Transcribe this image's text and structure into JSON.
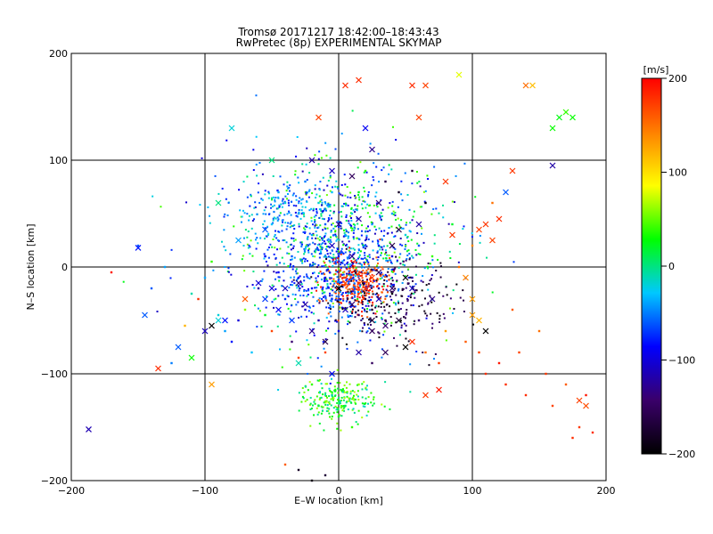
{
  "chart_data": {
    "type": "scatter",
    "title": "Tromsø 20171217 18:42:00–18:43:43",
    "subtitle": "RwPretec (8p) EXPERIMENTAL SKYMAP",
    "xlabel": "E–W location [km]",
    "ylabel": "N–S location [km]",
    "xlim": [
      -200,
      200
    ],
    "ylim": [
      -200,
      200
    ],
    "xticks": [
      -200,
      -100,
      0,
      100,
      200
    ],
    "yticks": [
      -200,
      -100,
      0,
      100,
      200
    ],
    "xtick_labels": [
      "−200",
      "−100",
      "0",
      "100",
      "200"
    ],
    "ytick_labels": [
      "−200",
      "−100",
      "0",
      "100",
      "200"
    ],
    "grid": true,
    "colorbar": {
      "label": "[m/s]",
      "range": [
        -200,
        200
      ],
      "ticks": [
        -200,
        -100,
        0,
        100,
        200
      ],
      "tick_labels": [
        "−200",
        "−100",
        "0",
        "100",
        "200"
      ],
      "colors": [
        "#000000",
        "#3a006a",
        "#0000ff",
        "#00c8ff",
        "#00ff00",
        "#ffff00",
        "#ff8000",
        "#ff0000"
      ]
    },
    "series": [
      {
        "marker": "x",
        "points": [
          [
            -150,
            18,
            -80
          ],
          [
            -145,
            -45,
            -60
          ],
          [
            -135,
            -95,
            180
          ],
          [
            -120,
            -75,
            -60
          ],
          [
            -110,
            -85,
            30
          ],
          [
            -95,
            -110,
            130
          ],
          [
            -100,
            -60,
            -110
          ],
          [
            -95,
            -55,
            -200
          ],
          [
            -90,
            -50,
            -20
          ],
          [
            -90,
            60,
            0
          ],
          [
            -85,
            -50,
            -80
          ],
          [
            -80,
            130,
            -20
          ],
          [
            -75,
            25,
            -40
          ],
          [
            -70,
            -30,
            160
          ],
          [
            -60,
            -15,
            -100
          ],
          [
            -55,
            -30,
            -70
          ],
          [
            -55,
            35,
            -60
          ],
          [
            -50,
            -20,
            -100
          ],
          [
            -50,
            100,
            0
          ],
          [
            -45,
            -40,
            -90
          ],
          [
            -40,
            -20,
            -110
          ],
          [
            -35,
            -50,
            -70
          ],
          [
            -30,
            -15,
            -130
          ],
          [
            -30,
            -90,
            -10
          ],
          [
            -25,
            -35,
            -120
          ],
          [
            -20,
            -60,
            -130
          ],
          [
            -20,
            100,
            -120
          ],
          [
            -15,
            140,
            170
          ],
          [
            -10,
            -70,
            -160
          ],
          [
            -5,
            -100,
            -90
          ],
          [
            -5,
            20,
            -110
          ],
          [
            -5,
            90,
            -110
          ],
          [
            0,
            -20,
            -200
          ],
          [
            0,
            40,
            -120
          ],
          [
            5,
            -15,
            170
          ],
          [
            5,
            -40,
            -110
          ],
          [
            5,
            170,
            180
          ],
          [
            10,
            10,
            -130
          ],
          [
            10,
            -35,
            -140
          ],
          [
            10,
            85,
            -150
          ],
          [
            15,
            -80,
            -120
          ],
          [
            15,
            45,
            -120
          ],
          [
            15,
            175,
            180
          ],
          [
            20,
            -20,
            180
          ],
          [
            20,
            130,
            -90
          ],
          [
            25,
            -10,
            170
          ],
          [
            25,
            -50,
            -170
          ],
          [
            25,
            -60,
            -150
          ],
          [
            25,
            110,
            -130
          ],
          [
            30,
            60,
            -140
          ],
          [
            30,
            -5,
            -150
          ],
          [
            30,
            -30,
            -110
          ],
          [
            35,
            -55,
            -140
          ],
          [
            35,
            -80,
            -150
          ],
          [
            40,
            -20,
            -140
          ],
          [
            40,
            20,
            -160
          ],
          [
            45,
            35,
            -160
          ],
          [
            45,
            -50,
            -170
          ],
          [
            50,
            -10,
            -190
          ],
          [
            50,
            -75,
            -200
          ],
          [
            55,
            -20,
            -110
          ],
          [
            55,
            -70,
            180
          ],
          [
            55,
            170,
            180
          ],
          [
            60,
            140,
            170
          ],
          [
            60,
            40,
            -120
          ],
          [
            65,
            170,
            170
          ],
          [
            65,
            -120,
            175
          ],
          [
            70,
            -30,
            -130
          ],
          [
            75,
            -115,
            190
          ],
          [
            80,
            80,
            175
          ],
          [
            85,
            30,
            175
          ],
          [
            90,
            180,
            80
          ],
          [
            95,
            -10,
            140
          ],
          [
            100,
            -30,
            130
          ],
          [
            100,
            -45,
            130
          ],
          [
            105,
            -50,
            120
          ],
          [
            105,
            35,
            170
          ],
          [
            110,
            -60,
            -200
          ],
          [
            110,
            40,
            175
          ],
          [
            115,
            25,
            170
          ],
          [
            120,
            45,
            180
          ],
          [
            125,
            70,
            -60
          ],
          [
            130,
            90,
            175
          ],
          [
            140,
            170,
            150
          ],
          [
            145,
            170,
            115
          ],
          [
            160,
            95,
            -120
          ],
          [
            160,
            130,
            30
          ],
          [
            165,
            140,
            25
          ],
          [
            170,
            145,
            40
          ],
          [
            175,
            140,
            30
          ],
          [
            180,
            -125,
            170
          ],
          [
            185,
            -130,
            165
          ],
          [
            -187,
            -152,
            -115
          ]
        ]
      },
      {
        "marker": "dot",
        "points": [
          [
            -170,
            -5,
            190
          ],
          [
            -150,
            20,
            -60
          ],
          [
            -140,
            -20,
            -60
          ],
          [
            -130,
            0,
            -40
          ],
          [
            -125,
            -90,
            -50
          ],
          [
            -115,
            -55,
            120
          ],
          [
            -110,
            -25,
            -10
          ],
          [
            -105,
            -30,
            180
          ],
          [
            -100,
            -10,
            -40
          ],
          [
            -95,
            5,
            40
          ],
          [
            -90,
            -45,
            -20
          ],
          [
            -85,
            -60,
            -40
          ],
          [
            -80,
            -70,
            -80
          ],
          [
            -75,
            -50,
            -100
          ],
          [
            -70,
            -40,
            60
          ],
          [
            -65,
            -80,
            -30
          ],
          [
            -60,
            -20,
            -120
          ],
          [
            -55,
            -45,
            20
          ],
          [
            -55,
            10,
            -80
          ],
          [
            -50,
            40,
            -30
          ],
          [
            -50,
            -60,
            170
          ],
          [
            -45,
            -5,
            -90
          ],
          [
            -45,
            70,
            -40
          ],
          [
            -40,
            -30,
            -70
          ],
          [
            -40,
            60,
            -20
          ],
          [
            -35,
            -70,
            -140
          ],
          [
            -35,
            10,
            -60
          ],
          [
            -30,
            -10,
            -90
          ],
          [
            -30,
            50,
            -40
          ],
          [
            -30,
            -85,
            170
          ],
          [
            -25,
            -40,
            -100
          ],
          [
            -25,
            80,
            -50
          ],
          [
            -20,
            -20,
            -80
          ],
          [
            -20,
            30,
            -40
          ],
          [
            -20,
            -110,
            40
          ],
          [
            -15,
            -50,
            -120
          ],
          [
            -15,
            60,
            -20
          ],
          [
            -15,
            -130,
            20
          ],
          [
            -10,
            -10,
            -100
          ],
          [
            -10,
            40,
            -60
          ],
          [
            -10,
            -80,
            170
          ],
          [
            -5,
            -30,
            -70
          ],
          [
            -5,
            70,
            -30
          ],
          [
            -5,
            -120,
            -10
          ],
          [
            0,
            10,
            -90
          ],
          [
            0,
            -60,
            -100
          ],
          [
            0,
            -140,
            20
          ],
          [
            5,
            30,
            -40
          ],
          [
            5,
            -10,
            180
          ],
          [
            5,
            -130,
            10
          ],
          [
            10,
            50,
            -20
          ],
          [
            10,
            -5,
            190
          ],
          [
            10,
            -25,
            170
          ],
          [
            10,
            -150,
            40
          ],
          [
            15,
            70,
            20
          ],
          [
            15,
            -15,
            180
          ],
          [
            15,
            -45,
            -150
          ],
          [
            15,
            -110,
            60
          ],
          [
            20,
            20,
            -60
          ],
          [
            20,
            -30,
            -160
          ],
          [
            20,
            90,
            40
          ],
          [
            25,
            40,
            -40
          ],
          [
            25,
            -40,
            -180
          ],
          [
            25,
            -90,
            -150
          ],
          [
            30,
            60,
            -20
          ],
          [
            30,
            -20,
            -120
          ],
          [
            30,
            20,
            -80
          ],
          [
            35,
            80,
            -160
          ],
          [
            35,
            -50,
            -170
          ],
          [
            40,
            10,
            -100
          ],
          [
            40,
            -25,
            -190
          ],
          [
            40,
            50,
            -40
          ],
          [
            45,
            70,
            -180
          ],
          [
            45,
            -40,
            -200
          ],
          [
            50,
            30,
            -20
          ],
          [
            50,
            -60,
            -160
          ],
          [
            55,
            -10,
            -120
          ],
          [
            55,
            90,
            -170
          ],
          [
            60,
            20,
            -60
          ],
          [
            60,
            -50,
            -140
          ],
          [
            65,
            60,
            -190
          ],
          [
            65,
            -80,
            150
          ],
          [
            70,
            10,
            40
          ],
          [
            70,
            -30,
            -180
          ],
          [
            75,
            -90,
            175
          ],
          [
            80,
            -60,
            130
          ],
          [
            85,
            40,
            20
          ],
          [
            90,
            0,
            150
          ],
          [
            95,
            -70,
            160
          ],
          [
            100,
            20,
            140
          ],
          [
            105,
            -80,
            170
          ],
          [
            110,
            -100,
            180
          ],
          [
            115,
            60,
            150
          ],
          [
            120,
            -90,
            190
          ],
          [
            125,
            -110,
            180
          ],
          [
            130,
            -40,
            160
          ],
          [
            135,
            -80,
            170
          ],
          [
            140,
            -120,
            180
          ],
          [
            150,
            -60,
            150
          ],
          [
            155,
            -100,
            175
          ],
          [
            160,
            -130,
            170
          ],
          [
            170,
            -110,
            160
          ],
          [
            175,
            -160,
            180
          ],
          [
            180,
            -150,
            175
          ],
          [
            185,
            -120,
            190
          ],
          [
            190,
            -155,
            180
          ],
          [
            -30,
            -190,
            -180
          ],
          [
            -20,
            -200,
            -190
          ],
          [
            -40,
            -185,
            160
          ],
          [
            -10,
            -195,
            -170
          ]
        ]
      }
    ],
    "density_clusters": [
      {
        "center": [
          0,
          20
        ],
        "spread": [
          40,
          40
        ],
        "count": 900,
        "values": [
          -120,
          60
        ]
      },
      {
        "center": [
          15,
          -15
        ],
        "spread": [
          12,
          12
        ],
        "count": 250,
        "values": [
          150,
          200
        ]
      },
      {
        "center": [
          0,
          -10
        ],
        "spread": [
          20,
          25
        ],
        "count": 300,
        "values": [
          -90,
          -40
        ]
      },
      {
        "center": [
          0,
          -125
        ],
        "spread": [
          14,
          10
        ],
        "count": 220,
        "values": [
          -20,
          70
        ]
      },
      {
        "center": [
          -40,
          50
        ],
        "spread": [
          25,
          20
        ],
        "count": 200,
        "values": [
          -80,
          -10
        ]
      },
      {
        "center": [
          40,
          -30
        ],
        "spread": [
          25,
          20
        ],
        "count": 200,
        "values": [
          -200,
          -130
        ]
      }
    ]
  }
}
